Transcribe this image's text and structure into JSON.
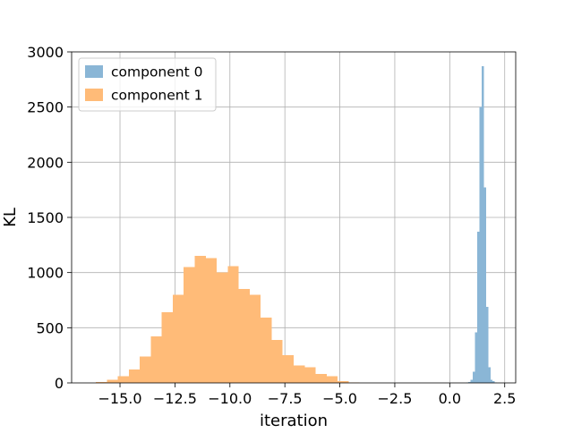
{
  "chart_data": {
    "type": "bar",
    "subtype": "histogram",
    "title": "",
    "xlabel": "iteration",
    "ylabel": "KL",
    "xlim": [
      -17.2,
      3.0
    ],
    "ylim": [
      0,
      3000
    ],
    "x_ticks": [
      -15.0,
      -12.5,
      -10.0,
      -7.5,
      -5.0,
      -2.5,
      0.0,
      2.5
    ],
    "x_tick_labels": [
      "−15.0",
      "−12.5",
      "−10.0",
      "−7.5",
      "−5.0",
      "−2.5",
      "0.0",
      "2.5"
    ],
    "y_ticks": [
      0,
      500,
      1000,
      1500,
      2000,
      2500,
      3000
    ],
    "y_tick_labels": [
      "0",
      "500",
      "1000",
      "1500",
      "2000",
      "2500",
      "3000"
    ],
    "grid": true,
    "legend_position": "top-left",
    "series": [
      {
        "name": "component 1",
        "color": "#ffbb78",
        "bins": [
          {
            "x0": -16.1,
            "x1": -15.6,
            "count": 10
          },
          {
            "x0": -15.6,
            "x1": -15.1,
            "count": 30
          },
          {
            "x0": -15.1,
            "x1": -14.6,
            "count": 60
          },
          {
            "x0": -14.6,
            "x1": -14.1,
            "count": 120
          },
          {
            "x0": -14.1,
            "x1": -13.6,
            "count": 240
          },
          {
            "x0": -13.6,
            "x1": -13.1,
            "count": 420
          },
          {
            "x0": -13.1,
            "x1": -12.6,
            "count": 640
          },
          {
            "x0": -12.6,
            "x1": -12.1,
            "count": 800
          },
          {
            "x0": -12.1,
            "x1": -11.6,
            "count": 1050
          },
          {
            "x0": -11.6,
            "x1": -11.1,
            "count": 1150
          },
          {
            "x0": -11.1,
            "x1": -10.6,
            "count": 1130
          },
          {
            "x0": -10.6,
            "x1": -10.1,
            "count": 1000
          },
          {
            "x0": -10.1,
            "x1": -9.6,
            "count": 1060
          },
          {
            "x0": -9.6,
            "x1": -9.1,
            "count": 850
          },
          {
            "x0": -9.1,
            "x1": -8.6,
            "count": 800
          },
          {
            "x0": -8.6,
            "x1": -8.1,
            "count": 590
          },
          {
            "x0": -8.1,
            "x1": -7.6,
            "count": 390
          },
          {
            "x0": -7.6,
            "x1": -7.1,
            "count": 250
          },
          {
            "x0": -7.1,
            "x1": -6.6,
            "count": 160
          },
          {
            "x0": -6.6,
            "x1": -6.1,
            "count": 140
          },
          {
            "x0": -6.1,
            "x1": -5.6,
            "count": 80
          },
          {
            "x0": -5.6,
            "x1": -5.1,
            "count": 60
          },
          {
            "x0": -5.1,
            "x1": -4.6,
            "count": 15
          },
          {
            "x0": -4.6,
            "x1": -4.1,
            "count": 5
          }
        ]
      },
      {
        "name": "component 0",
        "color": "#8ab6d6",
        "bins": [
          {
            "x0": 0.75,
            "x1": 0.85,
            "count": 5
          },
          {
            "x0": 0.85,
            "x1": 0.95,
            "count": 10
          },
          {
            "x0": 0.95,
            "x1": 1.05,
            "count": 30
          },
          {
            "x0": 1.05,
            "x1": 1.15,
            "count": 100
          },
          {
            "x0": 1.15,
            "x1": 1.25,
            "count": 460
          },
          {
            "x0": 1.25,
            "x1": 1.35,
            "count": 1370
          },
          {
            "x0": 1.35,
            "x1": 1.45,
            "count": 2500
          },
          {
            "x0": 1.45,
            "x1": 1.55,
            "count": 2870
          },
          {
            "x0": 1.55,
            "x1": 1.65,
            "count": 1770
          },
          {
            "x0": 1.65,
            "x1": 1.75,
            "count": 690
          },
          {
            "x0": 1.75,
            "x1": 1.85,
            "count": 140
          },
          {
            "x0": 1.85,
            "x1": 1.95,
            "count": 30
          },
          {
            "x0": 1.95,
            "x1": 2.05,
            "count": 15
          },
          {
            "x0": 2.05,
            "x1": 2.15,
            "count": 5
          },
          {
            "x0": 2.15,
            "x1": 2.25,
            "count": 2
          }
        ]
      }
    ],
    "legend": [
      {
        "label": "component 0",
        "color": "#8ab6d6"
      },
      {
        "label": "component 1",
        "color": "#ffbb78"
      }
    ]
  }
}
